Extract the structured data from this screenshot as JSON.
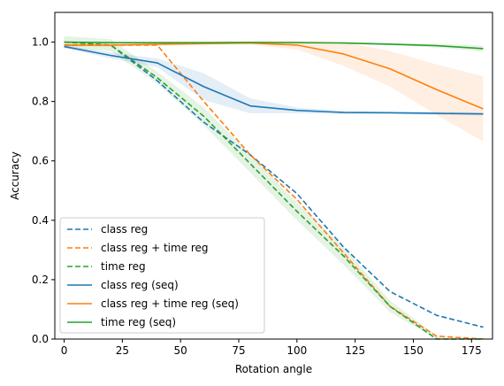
{
  "chart_data": {
    "type": "line",
    "xlabel": "Rotation angle",
    "ylabel": "Accuracy",
    "xlim": [
      -4,
      184
    ],
    "ylim": [
      0.0,
      1.1
    ],
    "x_ticks": [
      0,
      25,
      50,
      75,
      100,
      125,
      150,
      175
    ],
    "y_ticks": [
      0.0,
      0.2,
      0.4,
      0.6,
      0.8,
      1.0
    ],
    "legend_position": "lower-left",
    "grid": false,
    "series": [
      {
        "name": "class reg",
        "color": "#1f77b4",
        "dash": true,
        "x": [
          0,
          20,
          40,
          60,
          80,
          100,
          120,
          140,
          160,
          180
        ],
        "y": [
          0.99,
          0.99,
          0.87,
          0.73,
          0.62,
          0.49,
          0.31,
          0.16,
          0.08,
          0.04
        ],
        "band": []
      },
      {
        "name": "class reg + time reg",
        "color": "#ff7f0e",
        "dash": true,
        "x": [
          0,
          20,
          40,
          60,
          80,
          100,
          120,
          140,
          160,
          180
        ],
        "y": [
          0.99,
          0.99,
          0.99,
          0.8,
          0.62,
          0.47,
          0.29,
          0.11,
          0.01,
          0.0
        ],
        "band": []
      },
      {
        "name": "time reg",
        "color": "#2ca02c",
        "dash": true,
        "x": [
          0,
          20,
          40,
          60,
          80,
          100,
          120,
          140,
          160,
          180
        ],
        "y": [
          1.0,
          0.99,
          0.88,
          0.75,
          0.59,
          0.43,
          0.28,
          0.11,
          0.0,
          0.0
        ],
        "band": [
          0.02,
          0.02,
          0.02,
          0.03,
          0.03,
          0.03,
          0.03,
          0.02,
          0.01,
          0.0
        ]
      },
      {
        "name": "class reg (seq)",
        "color": "#1f77b4",
        "dash": false,
        "x": [
          0,
          20,
          40,
          60,
          80,
          100,
          120,
          140,
          160,
          180
        ],
        "y": [
          0.985,
          0.955,
          0.93,
          0.85,
          0.785,
          0.77,
          0.763,
          0.762,
          0.76,
          0.758
        ],
        "band": [
          0.005,
          0.01,
          0.015,
          0.045,
          0.025,
          0.01,
          0.005,
          0.005,
          0.005,
          0.005
        ]
      },
      {
        "name": "class reg + time reg (seq)",
        "color": "#ff7f0e",
        "dash": false,
        "x": [
          0,
          20,
          40,
          60,
          80,
          100,
          120,
          140,
          160,
          180
        ],
        "y": [
          0.99,
          0.99,
          0.993,
          0.995,
          0.997,
          0.99,
          0.96,
          0.91,
          0.84,
          0.775
        ],
        "band": [
          0.005,
          0.005,
          0.005,
          0.005,
          0.005,
          0.015,
          0.04,
          0.06,
          0.085,
          0.11
        ]
      },
      {
        "name": "time reg (seq)",
        "color": "#2ca02c",
        "dash": false,
        "x": [
          0,
          20,
          40,
          60,
          80,
          100,
          120,
          140,
          160,
          180
        ],
        "y": [
          1.0,
          0.998,
          0.998,
          0.998,
          0.999,
          0.998,
          0.997,
          0.993,
          0.988,
          0.978
        ],
        "band": [
          0.002,
          0.002,
          0.002,
          0.002,
          0.002,
          0.002,
          0.003,
          0.004,
          0.006,
          0.01
        ]
      }
    ]
  }
}
